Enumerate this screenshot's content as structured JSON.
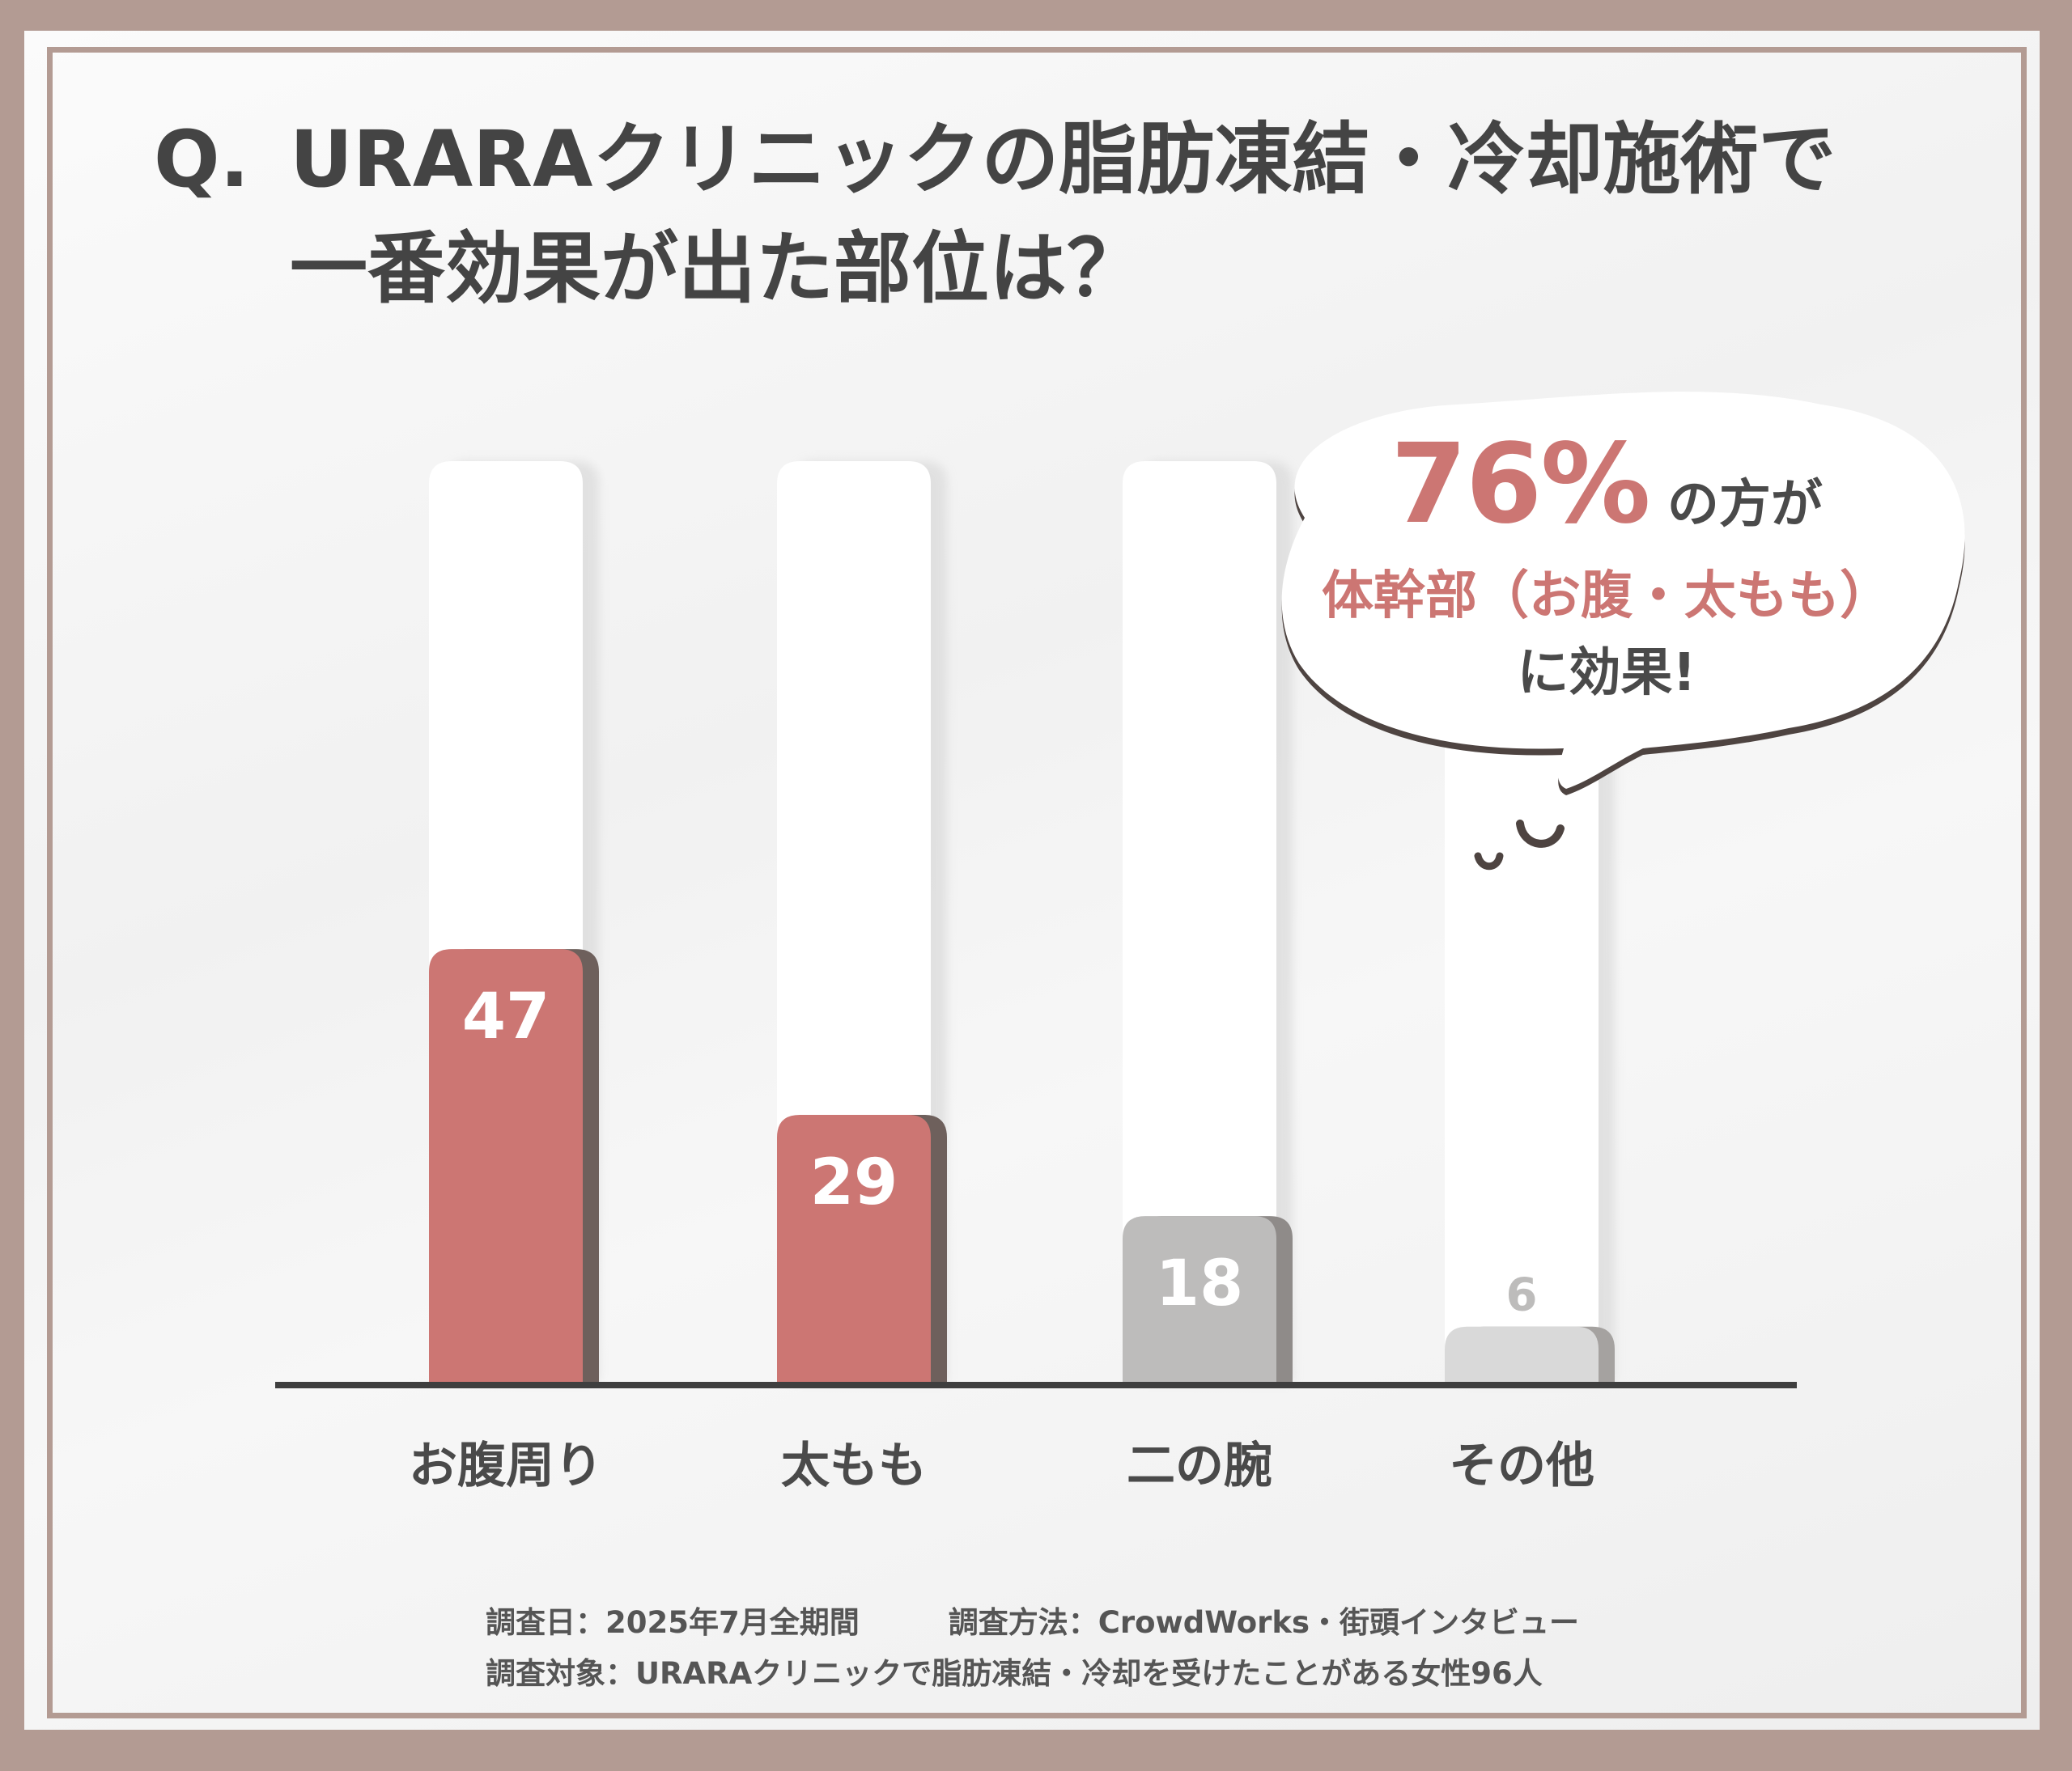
{
  "title": {
    "q_mark": "Q.",
    "line1": "URARAクリニックの脂肪凍結・冷却施術で",
    "line2": "一番効果が出た部位は？"
  },
  "chart_data": {
    "type": "bar",
    "title": "URARAクリニックの脂肪凍結・冷却施術で一番効果が出た部位は？",
    "xlabel": "",
    "ylabel": "",
    "categories": [
      "お腹周り",
      "太もも",
      "二の腕",
      "その他"
    ],
    "values": [
      47,
      29,
      18,
      6
    ],
    "value_labels": [
      "47",
      "29",
      "18",
      "6"
    ],
    "ylim": [
      0,
      100
    ],
    "grid": false,
    "legend": "none",
    "bar_colors": [
      "#cc7673",
      "#cc7673",
      "#bdbcbb",
      "#d9d9d9"
    ],
    "bar_shadow_colors": [
      "#6e605c",
      "#6e605c",
      "#8f8b89",
      "#a5a2a0"
    ],
    "label_colors": [
      "#ffffff",
      "#ffffff",
      "#ffffff",
      "#bdbcbb"
    ]
  },
  "callout": {
    "percent": "76%",
    "line1_rest": "の方が",
    "line2": "体幹部（お腹・太もも）",
    "line3": "に効果!"
  },
  "notes": {
    "date": "調査日：2025年7月全期間",
    "method": "調査方法：CrowdWorks・街頭インタビュー",
    "target": "調査対象：URARAクリニックで脂肪凍結・冷却を受けたことがある女性96人"
  },
  "colors": {
    "frame": "#b39b93",
    "accent": "#cc7673",
    "text": "#444444"
  }
}
